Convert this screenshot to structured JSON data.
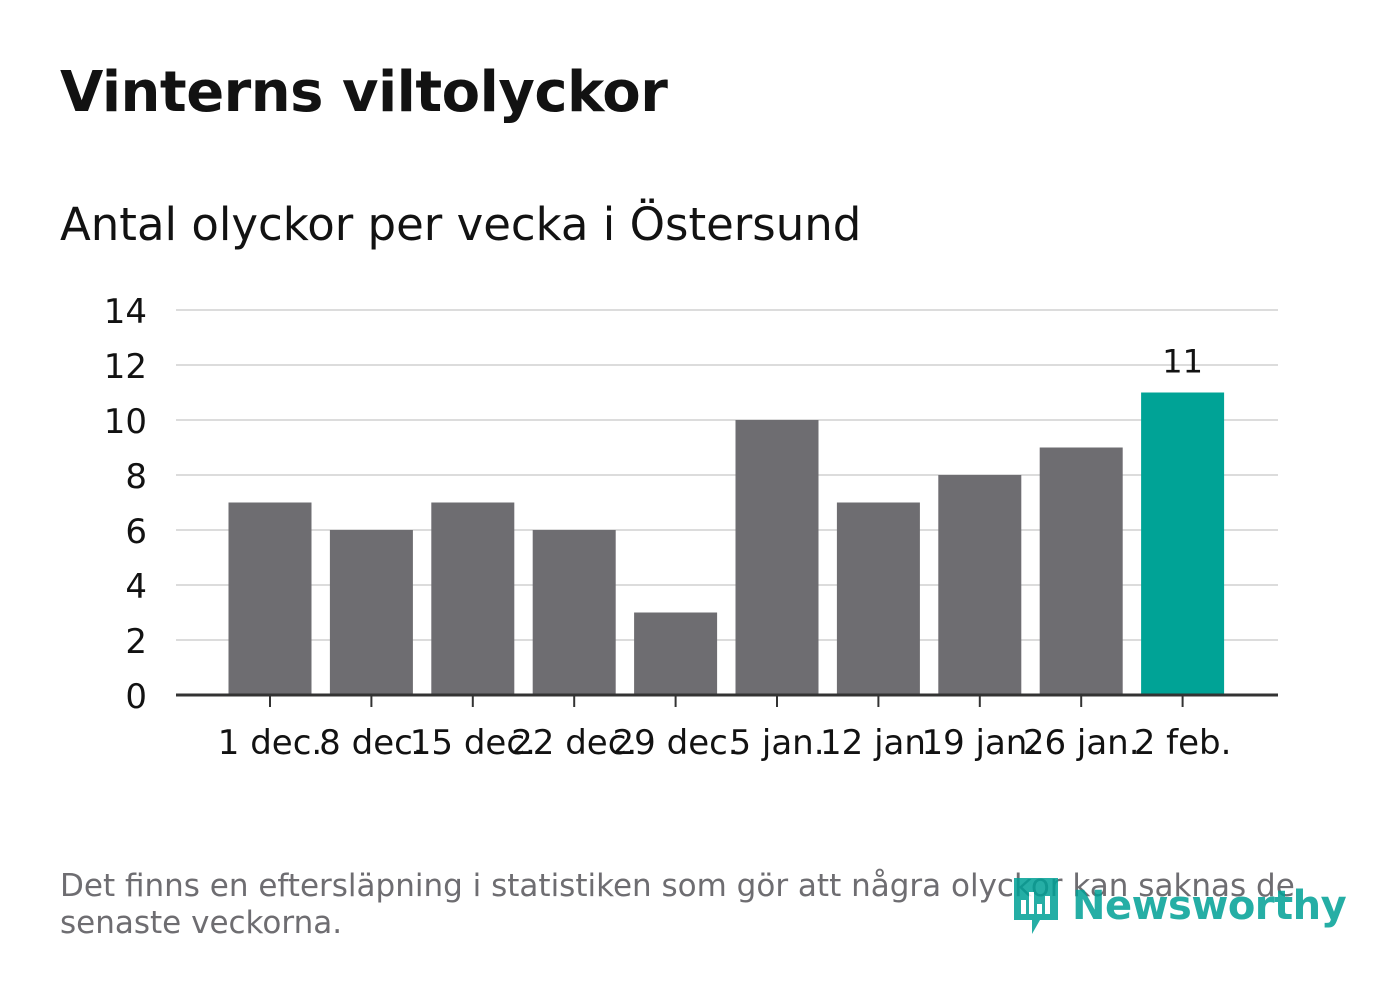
{
  "title": "Vinterns viltolyckor",
  "subtitle": "Antal olyckor per vecka i Östersund",
  "footnote": "Det finns en eftersläpning i statistiken som gör att några olyckor kan saknas de senaste veckorna.",
  "brand": {
    "name": "Newsworthy",
    "color": "#00a096",
    "icon": "newsworthy-logo-icon"
  },
  "colors": {
    "bar": "#6e6d71",
    "highlight": "#00a396",
    "grid": "#dcdcdc",
    "axis": "#333333",
    "text": "#121212"
  },
  "chart_data": {
    "type": "bar",
    "title": "Vinterns viltolyckor",
    "subtitle": "Antal olyckor per vecka i Östersund",
    "xlabel": "",
    "ylabel": "",
    "categories": [
      "1 dec.",
      "8 dec.",
      "15 dec.",
      "22 dec.",
      "29 dec.",
      "5 jan.",
      "12 jan.",
      "19 jan.",
      "26 jan.",
      "2 feb."
    ],
    "values": [
      7,
      6,
      7,
      6,
      3,
      10,
      7,
      8,
      9,
      11
    ],
    "highlight_index": 9,
    "data_labels": [
      {
        "index": 9,
        "text": "11"
      }
    ],
    "ylim": [
      0,
      14
    ],
    "yticks": [
      0,
      2,
      4,
      6,
      8,
      10,
      12,
      14
    ],
    "grid": true,
    "legend": "none"
  }
}
